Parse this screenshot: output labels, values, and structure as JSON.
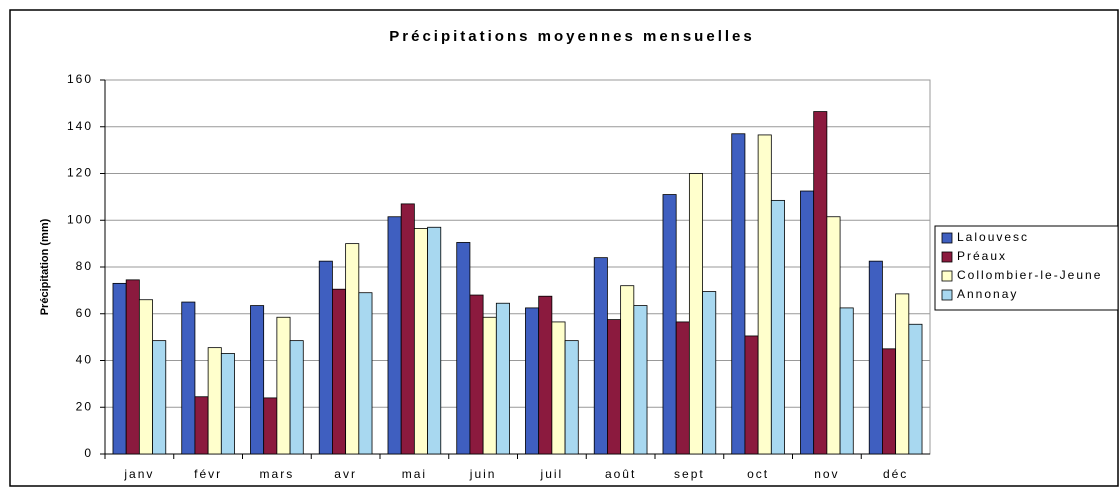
{
  "chart_data": {
    "type": "bar",
    "title": "Précipitations moyennes mensuelles",
    "y_label": "Précipitation (mm)",
    "categories": [
      "janv",
      "févr",
      "mars",
      "avr",
      "mai",
      "juin",
      "juil",
      "août",
      "sept",
      "oct",
      "nov",
      "déc"
    ],
    "series": [
      {
        "name": "Lalouvesc",
        "color": "#3f5fc0",
        "values": [
          73,
          65,
          63.5,
          82.5,
          101.5,
          90.5,
          62.5,
          84,
          111,
          137,
          112.5,
          82.5
        ]
      },
      {
        "name": "Préaux",
        "color": "#8b1a3e",
        "values": [
          74.5,
          24.5,
          24,
          70.5,
          107,
          68,
          67.5,
          57.5,
          56.5,
          50.5,
          146.5,
          45
        ]
      },
      {
        "name": "Collombier-le-Jeune",
        "color": "#ffffcc",
        "values": [
          66,
          45.5,
          58.5,
          90,
          96.5,
          58.5,
          56.5,
          72,
          120,
          136.5,
          101.5,
          68.5
        ]
      },
      {
        "name": "Annonay",
        "color": "#a8d8f0",
        "values": [
          48.5,
          43,
          48.5,
          69,
          97,
          64.5,
          48.5,
          63.5,
          69.5,
          108.5,
          62.5,
          55.5
        ]
      }
    ],
    "ylim": [
      0,
      160
    ],
    "yticks": [
      0,
      20,
      40,
      60,
      80,
      100,
      120,
      140,
      160
    ],
    "grid": true,
    "legend": "right"
  }
}
